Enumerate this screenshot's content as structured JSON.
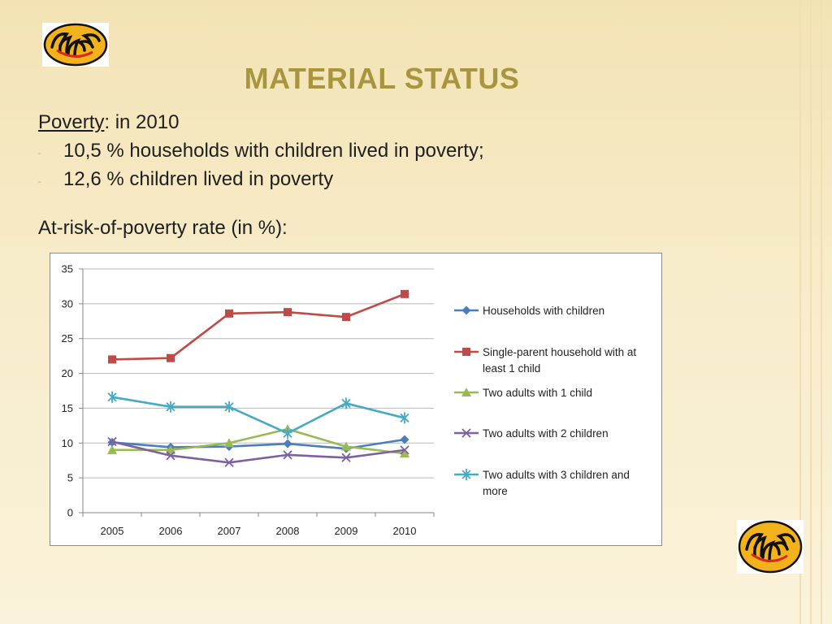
{
  "slide": {
    "title": "MATERIAL STATUS",
    "poverty_label": "Poverty",
    "poverty_suffix": ": in 2010",
    "bullets": [
      {
        "dash": "-",
        "text": "10,5 % households with children lived in poverty;"
      },
      {
        "dash": "-",
        "text": "12,6 % children lived in poverty"
      }
    ],
    "rate_heading": "At-risk-of-poverty rate (in %):"
  },
  "chart_data": {
    "type": "line",
    "title": "",
    "xlabel": "",
    "ylabel": "",
    "categories": [
      "2005",
      "2006",
      "2007",
      "2008",
      "2009",
      "2010"
    ],
    "ylim": [
      0,
      35
    ],
    "yticks": [
      0,
      5,
      10,
      15,
      20,
      25,
      30,
      35
    ],
    "grid": true,
    "legend_position": "right",
    "series": [
      {
        "name": "Households with children",
        "color": "#4a7ebb",
        "marker": "diamond",
        "values": [
          10.1,
          9.4,
          9.5,
          9.9,
          9.2,
          10.5
        ]
      },
      {
        "name": "Single-parent household with at least 1 child",
        "color": "#be4b48",
        "marker": "square",
        "values": [
          22.0,
          22.2,
          28.6,
          28.8,
          28.1,
          31.4
        ]
      },
      {
        "name": "Two adults with 1 child",
        "color": "#98b954",
        "marker": "triangle",
        "values": [
          9.0,
          9.0,
          10.0,
          12.0,
          9.5,
          8.5
        ]
      },
      {
        "name": "Two adults with 2 children",
        "color": "#7d60a0",
        "marker": "x",
        "values": [
          10.2,
          8.2,
          7.2,
          8.3,
          7.9,
          9.0
        ]
      },
      {
        "name": "Two adults with 3 children and more",
        "color": "#46aac5",
        "marker": "star",
        "values": [
          16.6,
          15.2,
          15.2,
          11.4,
          15.7,
          13.6
        ]
      }
    ]
  }
}
